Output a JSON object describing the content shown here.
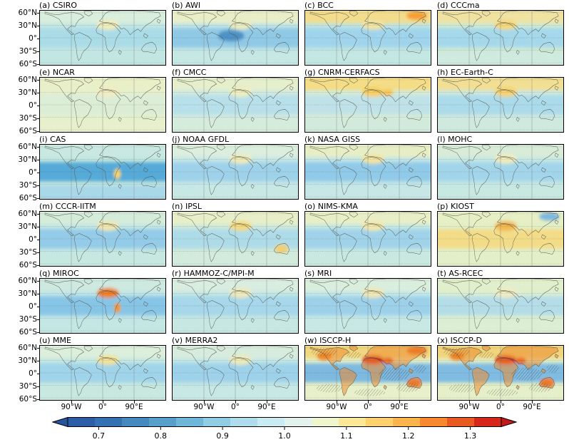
{
  "axes": {
    "lat_ticks": [
      "60°N",
      "30°N",
      "0°",
      "30°S",
      "60°S"
    ],
    "lon_ticks": [
      "90°W",
      "0°",
      "90°E"
    ]
  },
  "panels": [
    {
      "id": "a",
      "label": "(a) CSIRO",
      "name": "CSIRO",
      "hatched": false,
      "colors": {
        "ocean": "#c2e6e2",
        "north": "#d9eedd",
        "tropics": "#aadce8",
        "south": "#c2e6e2",
        "land": "none"
      },
      "accents": [
        {
          "region": "sahara",
          "color": "#f0ecba"
        }
      ]
    },
    {
      "id": "b",
      "label": "(b) AWI",
      "name": "AWI",
      "hatched": false,
      "colors": {
        "ocean": "#c0e4e6",
        "north": "#e9eec8",
        "tropics": "#8fc9e6",
        "south": "#c6e8e4",
        "land": "none"
      },
      "accents": [
        {
          "region": "atlantic-eq",
          "color": "#4e92c6"
        },
        {
          "region": "sahara",
          "color": "#e8ecc0"
        }
      ]
    },
    {
      "id": "c",
      "label": "(c) BCC",
      "name": "BCC",
      "hatched": false,
      "colors": {
        "ocean": "#c0e4e0",
        "north": "#f3dd8c",
        "tropics": "#9fd4ec",
        "south": "#c3e7e2",
        "land": "none"
      },
      "accents": [
        {
          "region": "ne-asia",
          "color": "#f59f2e"
        },
        {
          "region": "sahara",
          "color": "#f0e4a2"
        }
      ]
    },
    {
      "id": "d",
      "label": "(d) CCCma",
      "name": "CCCma",
      "hatched": false,
      "colors": {
        "ocean": "#cde9d6",
        "north": "#f0e3a2",
        "tropics": "#a5d8ea",
        "south": "#cfeade",
        "land": "none"
      },
      "accents": [
        {
          "region": "sahara",
          "color": "#f5d87a"
        }
      ]
    },
    {
      "id": "e",
      "label": "(e) NCAR",
      "name": "NCAR",
      "hatched": false,
      "colors": {
        "ocean": "#e4efcf",
        "north": "#e9f0c8",
        "tropics": "#dcedd6",
        "south": "#e6f0cc",
        "land": "none"
      },
      "accents": [
        {
          "region": "sahara",
          "color": "#f0ecc0"
        }
      ]
    },
    {
      "id": "f",
      "label": "(f) CMCC",
      "name": "CMCC",
      "hatched": false,
      "colors": {
        "ocean": "#d0e9e0",
        "north": "#e5efcc",
        "tropics": "#b7e0ea",
        "south": "#d5ecdc",
        "land": "none"
      },
      "accents": [
        {
          "region": "sahara",
          "color": "#eeeebe"
        }
      ]
    },
    {
      "id": "g",
      "label": "(g) CNRM-CERFACS",
      "name": "CNRM-CERFACS",
      "hatched": false,
      "colors": {
        "ocean": "#d5ecd8",
        "north": "#f4dd86",
        "tropics": "#bfe2e8",
        "south": "#d2eadc",
        "land": "none"
      },
      "accents": [
        {
          "region": "sahara",
          "color": "#f8cf62"
        },
        {
          "region": "mideast",
          "color": "#f6c355"
        }
      ]
    },
    {
      "id": "h",
      "label": "(h) EC-Earth-C",
      "name": "EC-Earth-C",
      "hatched": false,
      "colors": {
        "ocean": "#cde8e0",
        "north": "#f2df94",
        "tropics": "#abdaea",
        "south": "#cfe9de",
        "land": "none"
      },
      "accents": [
        {
          "region": "sahara",
          "color": "#f6d370"
        }
      ]
    },
    {
      "id": "i",
      "label": "(i) CAS",
      "name": "CAS",
      "hatched": false,
      "colors": {
        "ocean": "#c0e6e0",
        "north": "#c9e8e2",
        "tropics": "#57aad8",
        "south": "#a9d8e8",
        "land": "none"
      },
      "accents": [
        {
          "region": "e-africa",
          "color": "#f3d468"
        }
      ]
    },
    {
      "id": "j",
      "label": "(j) NOAA GFDL",
      "name": "NOAA GFDL",
      "hatched": false,
      "colors": {
        "ocean": "#c4e6e6",
        "north": "#dceede",
        "tropics": "#9ed2ea",
        "south": "#c8e8e4",
        "land": "none"
      },
      "accents": [
        {
          "region": "sahara",
          "color": "#efeab8"
        }
      ]
    },
    {
      "id": "k",
      "label": "(k) NASA GISS",
      "name": "NASA GISS",
      "hatched": false,
      "colors": {
        "ocean": "#c2e5e8",
        "north": "#e7eec6",
        "tropics": "#90cae8",
        "south": "#c6e7e6",
        "land": "none"
      },
      "accents": [
        {
          "region": "sahara",
          "color": "#f2e4a2"
        }
      ]
    },
    {
      "id": "l",
      "label": "(l) MOHC",
      "name": "MOHC",
      "hatched": false,
      "colors": {
        "ocean": "#c4e7e4",
        "north": "#d8ecd8",
        "tropics": "#a2d5ea",
        "south": "#c8e8e2",
        "land": "none"
      },
      "accents": [
        {
          "region": "sahara",
          "color": "#efecbc"
        }
      ]
    },
    {
      "id": "m",
      "label": "(m) CCCR-IITM",
      "name": "CCCR-IITM",
      "hatched": false,
      "colors": {
        "ocean": "#c2e6e4",
        "north": "#d5ecda",
        "tropics": "#93cbe8",
        "south": "#c6e8e0",
        "land": "none"
      },
      "accents": [
        {
          "region": "sahara",
          "color": "#f0e6ae"
        }
      ]
    },
    {
      "id": "n",
      "label": "(n) IPSL",
      "name": "IPSL",
      "hatched": false,
      "colors": {
        "ocean": "#cfe9da",
        "north": "#e8efc8",
        "tropics": "#aedbe8",
        "south": "#d2ebdc",
        "land": "none"
      },
      "accents": [
        {
          "region": "sahara",
          "color": "#f4da7e"
        },
        {
          "region": "australia",
          "color": "#f2d06a"
        }
      ]
    },
    {
      "id": "o",
      "label": "(o) NIMS-KMA",
      "name": "NIMS-KMA",
      "hatched": false,
      "colors": {
        "ocean": "#c5e7e2",
        "north": "#e8efc6",
        "tropics": "#a0d3ea",
        "south": "#c9e9e0",
        "land": "none"
      },
      "accents": [
        {
          "region": "sahara",
          "color": "#f1e7ac"
        }
      ]
    },
    {
      "id": "p",
      "label": "(p) KIOST",
      "name": "KIOST",
      "hatched": false,
      "colors": {
        "ocean": "#e1eec6",
        "north": "#e6f0c4",
        "tropics": "#f3dc88",
        "south": "#e3efc8",
        "land": "none"
      },
      "accents": [
        {
          "region": "sahara",
          "color": "#f5b850"
        },
        {
          "region": "ne-asia",
          "color": "#7ab8e0"
        }
      ]
    },
    {
      "id": "q",
      "label": "(q) MIROC",
      "name": "MIROC",
      "hatched": false,
      "colors": {
        "ocean": "#c0e5e6",
        "north": "#cde9e0",
        "tropics": "#87c5e6",
        "south": "#c4e7e4",
        "land": "none"
      },
      "accents": [
        {
          "region": "sahara",
          "color": "#f08020"
        },
        {
          "region": "e-africa",
          "color": "#ef9a2c"
        }
      ]
    },
    {
      "id": "r",
      "label": "(r) HAMMOZ-C/MPI-M",
      "name": "HAMMOZ-C/MPI-M",
      "hatched": false,
      "colors": {
        "ocean": "#c3e6e4",
        "north": "#d9ede0",
        "tropics": "#a6d7ea",
        "south": "#c7e8e2",
        "land": "none"
      },
      "accents": [
        {
          "region": "sahara",
          "color": "#eeeaba"
        }
      ]
    },
    {
      "id": "s",
      "label": "(s) MRI",
      "name": "MRI",
      "hatched": false,
      "colors": {
        "ocean": "#c4e7e6",
        "north": "#daeedd",
        "tropics": "#9dd1ea",
        "south": "#c8e8e4",
        "land": "none"
      },
      "accents": [
        {
          "region": "sahara",
          "color": "#f0e8b2"
        }
      ]
    },
    {
      "id": "t",
      "label": "(t) AS-RCEC",
      "name": "AS-RCEC",
      "hatched": false,
      "colors": {
        "ocean": "#daeed2",
        "north": "#e2efcc",
        "tropics": "#b4dde8",
        "south": "#dceed4",
        "land": "none"
      },
      "accents": [
        {
          "region": "sahara",
          "color": "#efecc2"
        }
      ]
    },
    {
      "id": "u",
      "label": "(u) MME",
      "name": "MME",
      "hatched": false,
      "colors": {
        "ocean": "#c4e7e2",
        "north": "#dceedc",
        "tropics": "#a0d4ea",
        "south": "#c8e8e0",
        "land": "none"
      },
      "accents": [
        {
          "region": "sahara",
          "color": "#f2e298"
        }
      ]
    },
    {
      "id": "v",
      "label": "(v) MERRA2",
      "name": "MERRA2",
      "hatched": false,
      "colors": {
        "ocean": "#c3e6e6",
        "north": "#d8ecde",
        "tropics": "#9ed2ea",
        "south": "#c7e8e4",
        "land": "none"
      },
      "accents": [
        {
          "region": "sahara",
          "color": "#eeeab8"
        }
      ]
    },
    {
      "id": "w",
      "label": "(w) ISCCP-H",
      "name": "ISCCP-H",
      "hatched": true,
      "colors": {
        "ocean": "#e4efc8",
        "north": "#f1d780",
        "tropics": "#7eb9e0",
        "south": "#e7f0ca",
        "land": "#ee8c2e"
      },
      "accents": [
        {
          "region": "sahara",
          "color": "#da2b1e"
        },
        {
          "region": "mideast",
          "color": "#e0431f"
        },
        {
          "region": "australia",
          "color": "#e8611f"
        },
        {
          "region": "w-north-america",
          "color": "#ef8822"
        },
        {
          "region": "ne-asia",
          "color": "#e8671f"
        }
      ]
    },
    {
      "id": "x",
      "label": "(x) ISCCP-D",
      "name": "ISCCP-D",
      "hatched": true,
      "colors": {
        "ocean": "#e2eec6",
        "north": "#f0d57c",
        "tropics": "#80bce2",
        "south": "#e5efc8",
        "land": "#ee8c2e"
      },
      "accents": [
        {
          "region": "sahara",
          "color": "#d92a1d"
        },
        {
          "region": "mideast",
          "color": "#df421e"
        },
        {
          "region": "australia",
          "color": "#e8611f"
        },
        {
          "region": "w-north-america",
          "color": "#ee8420"
        }
      ]
    }
  ],
  "colorbar": {
    "tick_labels": [
      "0.7",
      "0.8",
      "0.9",
      "1.0",
      "1.1",
      "1.2",
      "1.3"
    ],
    "tick_values": [
      0.7,
      0.8,
      0.9,
      1.0,
      1.1,
      1.2,
      1.3
    ],
    "vmin": 0.65,
    "vmax": 1.35,
    "extend": "both",
    "colors": [
      "#2c5ea7",
      "#3472b4",
      "#4489c0",
      "#58a0cc",
      "#70b8d9",
      "#8fcde4",
      "#aedeed",
      "#c9ebf2",
      "#e2f3ef",
      "#eff5cd",
      "#fbe796",
      "#fdd26e",
      "#fdb54b",
      "#f9882e",
      "#e95a22",
      "#d7271d"
    ],
    "left_arrow_color": "#27559e",
    "right_arrow_color": "#c21a1b"
  },
  "chart_data": {
    "type": "heatmap",
    "layout": "6 rows x 4 columns of global latitude-longitude maps plus shared horizontal colorbar",
    "panels": [
      "(a) CSIRO",
      "(b) AWI",
      "(c) BCC",
      "(d) CCCma",
      "(e) NCAR",
      "(f) CMCC",
      "(g) CNRM-CERFACS",
      "(h) EC-Earth-C",
      "(i) CAS",
      "(j) NOAA GFDL",
      "(k) NASA GISS",
      "(l) MOHC",
      "(m) CCCR-IITM",
      "(n) IPSL",
      "(o) NIMS-KMA",
      "(p) KIOST",
      "(q) MIROC",
      "(r) HAMMOZ-C/MPI-M",
      "(s) MRI",
      "(t) AS-RCEC",
      "(u) MME",
      "(v) MERRA2",
      "(w) ISCCP-H",
      "(x) ISCCP-D"
    ],
    "x_tick_labels": [
      "90°W",
      "0°",
      "90°E"
    ],
    "y_tick_labels": [
      "60°N",
      "30°N",
      "0°",
      "30°S",
      "60°S"
    ],
    "colorbar_ticks": [
      0.7,
      0.8,
      0.9,
      1.0,
      1.1,
      1.2,
      1.3
    ],
    "colorbar_range": [
      0.65,
      1.35
    ],
    "colormap": "blue to light-cyan to yellow to red (RdYlBu reversed), discrete levels, arrow extensions both ends",
    "grid": "dotted horizontal lines at 60N/30N/0/30S/60S, solid vertical lines at 90W/0/90E",
    "notes": "Panels (w) ISCCP-H and (x) ISCCP-D show strong warm (red/orange) values over land with diagonal hatched regions; panel (i) CAS shows strong blue tropical band; panel (q) MIROC shows orange maximum over the Sahara."
  }
}
